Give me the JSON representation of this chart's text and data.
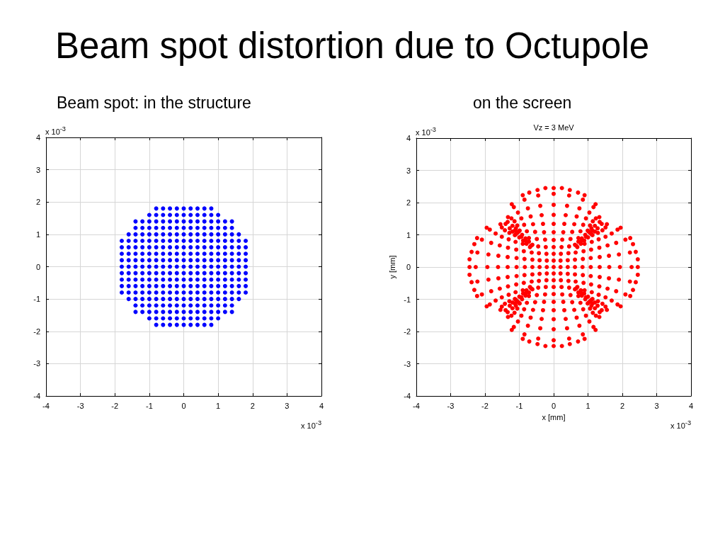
{
  "chart_data": [
    {
      "type": "scatter",
      "title": "Beam spot distortion due to Octupole",
      "subtitle": "Beam spot: in the structure",
      "annotations": [
        "x 10$^{-3}$",
        "x 10$^{-3}$"
      ],
      "xlim": [
        -4,
        4
      ],
      "ylim": [
        -4,
        4
      ],
      "xticks": [
        -4,
        -3,
        -2,
        -1,
        0,
        1,
        2,
        3,
        4
      ],
      "yticks": [
        -4,
        -3,
        -2,
        -1,
        0,
        1,
        2,
        3,
        4
      ],
      "grid": true,
      "marker": "circle",
      "series": [
        {
          "color": "#0000ff",
          "x": [
            -0.8,
            -0.6,
            -0.4,
            -0.2,
            0,
            0.2,
            0.4,
            0.6,
            0.8,
            -1,
            -0.8,
            -0.6,
            -0.4,
            -0.2,
            0,
            0.2,
            0.4,
            0.6,
            0.8,
            1,
            -1.4,
            -1.2,
            -1,
            -0.8,
            -0.6,
            -0.4,
            -0.2,
            0,
            0.2,
            0.4,
            0.6,
            0.8,
            1,
            1.2,
            1.4,
            -1.4,
            -1.2,
            -1,
            -0.8,
            -0.6,
            -0.4,
            -0.2,
            0,
            0.2,
            0.4,
            0.6,
            0.8,
            1,
            1.2,
            1.4,
            -1.6,
            -1.4,
            -1.2,
            -1,
            -0.8,
            -0.6,
            -0.4,
            -0.2,
            0,
            0.2,
            0.4,
            0.6,
            0.8,
            1,
            1.2,
            1.4,
            1.6,
            -1.8,
            -1.6,
            -1.4,
            -1.2,
            -1,
            -0.8,
            -0.6,
            -0.4,
            -0.2,
            0,
            0.2,
            0.4,
            0.6,
            0.8,
            1,
            1.2,
            1.4,
            1.6,
            1.8,
            -1.8,
            -1.6,
            -1.4,
            -1.2,
            -1,
            -0.8,
            -0.6,
            -0.4,
            -0.2,
            0,
            0.2,
            0.4,
            0.6,
            0.8,
            1,
            1.2,
            1.4,
            1.6,
            1.8,
            -1.8,
            -1.6,
            -1.4,
            -1.2,
            -1,
            -0.8,
            -0.6,
            -0.4,
            -0.2,
            0,
            0.2,
            0.4,
            0.6,
            0.8,
            1,
            1.2,
            1.4,
            1.6,
            1.8,
            -1.8,
            -1.6,
            -1.4,
            -1.2,
            -1,
            -0.8,
            -0.6,
            -0.4,
            -0.2,
            0,
            0.2,
            0.4,
            0.6,
            0.8,
            1,
            1.2,
            1.4,
            1.6,
            1.8,
            -1.8,
            -1.6,
            -1.4,
            -1.2,
            -1,
            -0.8,
            -0.6,
            -0.4,
            -0.2,
            0,
            0.2,
            0.4,
            0.6,
            0.8,
            1,
            1.2,
            1.4,
            1.6,
            1.8,
            -1.8,
            -1.6,
            -1.4,
            -1.2,
            -1,
            -0.8,
            -0.6,
            -0.4,
            -0.2,
            0,
            0.2,
            0.4,
            0.6,
            0.8,
            1,
            1.2,
            1.4,
            1.6,
            1.8,
            -1.8,
            -1.6,
            -1.4,
            -1.2,
            -1,
            -0.8,
            -0.6,
            -0.4,
            -0.2,
            0,
            0.2,
            0.4,
            0.6,
            0.8,
            1,
            1.2,
            1.4,
            1.6,
            1.8,
            -1.8,
            -1.6,
            -1.4,
            -1.2,
            -1,
            -0.8,
            -0.6,
            -0.4,
            -0.2,
            0,
            0.2,
            0.4,
            0.6,
            0.8,
            1,
            1.2,
            1.4,
            1.6,
            1.8,
            -1.8,
            -1.6,
            -1.4,
            -1.2,
            -1,
            -0.8,
            -0.6,
            -0.4,
            -0.2,
            0,
            0.2,
            0.4,
            0.6,
            0.8,
            1,
            1.2,
            1.4,
            1.6,
            1.8,
            -1.6,
            -1.4,
            -1.2,
            -1,
            -0.8,
            -0.6,
            -0.4,
            -0.2,
            0,
            0.2,
            0.4,
            0.6,
            0.8,
            1,
            1.2,
            1.4,
            1.6,
            -1.4,
            -1.2,
            -1,
            -0.8,
            -0.6,
            -0.4,
            -0.2,
            0,
            0.2,
            0.4,
            0.6,
            0.8,
            1,
            1.2,
            1.4,
            -1.4,
            -1.2,
            -1,
            -0.8,
            -0.6,
            -0.4,
            -0.2,
            0,
            0.2,
            0.4,
            0.6,
            0.8,
            1,
            1.2,
            1.4,
            -1,
            -0.8,
            -0.6,
            -0.4,
            -0.2,
            0,
            0.2,
            0.4,
            0.6,
            0.8,
            1,
            -0.8,
            -0.6,
            -0.4,
            -0.2,
            0,
            0.2,
            0.4,
            0.6,
            0.8
          ],
          "values": [
            1.8,
            1.8,
            1.8,
            1.8,
            1.8,
            1.8,
            1.8,
            1.8,
            1.8,
            1.6,
            1.6,
            1.6,
            1.6,
            1.6,
            1.6,
            1.6,
            1.6,
            1.6,
            1.6,
            1.6,
            1.4,
            1.4,
            1.4,
            1.4,
            1.4,
            1.4,
            1.4,
            1.4,
            1.4,
            1.4,
            1.4,
            1.4,
            1.4,
            1.4,
            1.4,
            1.2,
            1.2,
            1.2,
            1.2,
            1.2,
            1.2,
            1.2,
            1.2,
            1.2,
            1.2,
            1.2,
            1.2,
            1.2,
            1.2,
            1.2,
            1,
            1,
            1,
            1,
            1,
            1,
            1,
            1,
            1,
            1,
            1,
            1,
            1,
            1,
            1,
            1,
            1,
            0.8,
            0.8,
            0.8,
            0.8,
            0.8,
            0.8,
            0.8,
            0.8,
            0.8,
            0.8,
            0.8,
            0.8,
            0.8,
            0.8,
            0.8,
            0.8,
            0.8,
            0.8,
            0.8,
            0.6,
            0.6,
            0.6,
            0.6,
            0.6,
            0.6,
            0.6,
            0.6,
            0.6,
            0.6,
            0.6,
            0.6,
            0.6,
            0.6,
            0.6,
            0.6,
            0.6,
            0.6,
            0.6,
            0.4,
            0.4,
            0.4,
            0.4,
            0.4,
            0.4,
            0.4,
            0.4,
            0.4,
            0.4,
            0.4,
            0.4,
            0.4,
            0.4,
            0.4,
            0.4,
            0.4,
            0.4,
            0.4,
            0.2,
            0.2,
            0.2,
            0.2,
            0.2,
            0.2,
            0.2,
            0.2,
            0.2,
            0.2,
            0.2,
            0.2,
            0.2,
            0.2,
            0.2,
            0.2,
            0.2,
            0.2,
            0.2,
            0,
            0,
            0,
            0,
            0,
            0,
            0,
            0,
            0,
            0,
            0,
            0,
            0,
            0,
            0,
            0,
            0,
            0,
            0,
            -0.2,
            -0.2,
            -0.2,
            -0.2,
            -0.2,
            -0.2,
            -0.2,
            -0.2,
            -0.2,
            -0.2,
            -0.2,
            -0.2,
            -0.2,
            -0.2,
            -0.2,
            -0.2,
            -0.2,
            -0.2,
            -0.2,
            -0.4,
            -0.4,
            -0.4,
            -0.4,
            -0.4,
            -0.4,
            -0.4,
            -0.4,
            -0.4,
            -0.4,
            -0.4,
            -0.4,
            -0.4,
            -0.4,
            -0.4,
            -0.4,
            -0.4,
            -0.4,
            -0.4,
            -0.6,
            -0.6,
            -0.6,
            -0.6,
            -0.6,
            -0.6,
            -0.6,
            -0.6,
            -0.6,
            -0.6,
            -0.6,
            -0.6,
            -0.6,
            -0.6,
            -0.6,
            -0.6,
            -0.6,
            -0.6,
            -0.6,
            -0.8,
            -0.8,
            -0.8,
            -0.8,
            -0.8,
            -0.8,
            -0.8,
            -0.8,
            -0.8,
            -0.8,
            -0.8,
            -0.8,
            -0.8,
            -0.8,
            -0.8,
            -0.8,
            -0.8,
            -0.8,
            -0.8,
            -1,
            -1,
            -1,
            -1,
            -1,
            -1,
            -1,
            -1,
            -1,
            -1,
            -1,
            -1,
            -1,
            -1,
            -1,
            -1,
            -1,
            -1.2,
            -1.2,
            -1.2,
            -1.2,
            -1.2,
            -1.2,
            -1.2,
            -1.2,
            -1.2,
            -1.2,
            -1.2,
            -1.2,
            -1.2,
            -1.2,
            -1.2,
            -1.4,
            -1.4,
            -1.4,
            -1.4,
            -1.4,
            -1.4,
            -1.4,
            -1.4,
            -1.4,
            -1.4,
            -1.4,
            -1.4,
            -1.4,
            -1.4,
            -1.4,
            -1.6,
            -1.6,
            -1.6,
            -1.6,
            -1.6,
            -1.6,
            -1.6,
            -1.6,
            -1.6,
            -1.6,
            -1.6,
            -1.8,
            -1.8,
            -1.8,
            -1.8,
            -1.8,
            -1.8,
            -1.8,
            -1.8,
            -1.8
          ]
        }
      ]
    },
    {
      "type": "scatter",
      "title": "Vz = 3 MeV",
      "subtitle": "on the screen",
      "xlabel": "x [mm]",
      "ylabel": "y [mm]",
      "annotations": [
        "x 10$^{-3}$",
        "x 10$^{-3}$"
      ],
      "xlim": [
        -4,
        4
      ],
      "ylim": [
        -4,
        4
      ],
      "xticks": [
        -4,
        -3,
        -2,
        -1,
        0,
        1,
        2,
        3,
        4
      ],
      "yticks": [
        -4,
        -3,
        -2,
        -1,
        0,
        1,
        2,
        3,
        4
      ],
      "grid": true,
      "marker": "circle",
      "series": [
        {
          "color": "#ff0000",
          "x": [
            0,
            0,
            0,
            0,
            0,
            0,
            0,
            0,
            0,
            0,
            0,
            0,
            0,
            0,
            0,
            0,
            0,
            0,
            0,
            0,
            0,
            0.2,
            0.41,
            0.62,
            0.84,
            1.08,
            1.34,
            1.62,
            1.93,
            2.27,
            2.45,
            -0.2,
            -0.41,
            -0.62,
            -0.84,
            -1.08,
            -1.34,
            -1.62,
            -1.93,
            -2.27,
            -2.45,
            0.2,
            0.43,
            0.66,
            0.8,
            0.94,
            1.06,
            1.13,
            -0.2,
            -0.43,
            -0.66,
            -0.8,
            -0.94,
            -1.06,
            -1.13,
            0.2,
            0.43,
            0.66,
            0.8,
            0.94,
            1.06,
            1.13,
            -0.2,
            -0.43,
            -0.66,
            -0.8,
            -0.94,
            -1.06,
            -1.13,
            0.21,
            0.23,
            0.25,
            0.28,
            0.31,
            0.35,
            0.39,
            0.45,
            0.47,
            0.45,
            0.49,
            0.54,
            0.6,
            0.67,
            0.75,
            0.85,
            0.9,
            0.72,
            0.78,
            0.86,
            0.94,
            1.04,
            1.16,
            1.22,
            0.99,
            1.06,
            1.14,
            1.23,
            1.33,
            0.62,
            0.72,
            0.82,
            0.92,
            1.02,
            1.1,
            1.34,
            1.2,
            0.24,
            0.71,
            -0.21,
            -0.23,
            -0.25,
            -0.28,
            -0.31,
            -0.35,
            -0.39,
            -0.45,
            -0.47,
            -0.45,
            -0.49,
            -0.54,
            -0.6,
            -0.67,
            -0.75,
            -0.85,
            -0.9,
            -0.72,
            -0.78,
            -0.86,
            -0.94,
            -1.04,
            -1.16,
            -1.22,
            -0.99,
            -1.06,
            -1.14,
            -1.23,
            -1.33,
            -0.62,
            -0.72,
            -0.82,
            -0.92,
            -1.02,
            -1.1,
            -1.34,
            -1.2,
            -0.24,
            -0.71,
            0.21,
            0.23,
            0.25,
            0.28,
            0.31,
            0.35,
            0.39,
            0.45,
            0.47,
            0.45,
            0.49,
            0.54,
            0.6,
            0.67,
            0.75,
            0.85,
            0.9,
            0.72,
            0.78,
            0.86,
            0.94,
            1.04,
            1.16,
            1.22,
            0.99,
            1.06,
            1.14,
            1.23,
            1.33,
            0.62,
            0.72,
            0.82,
            0.92,
            1.02,
            1.1,
            1.34,
            1.2,
            0.24,
            0.71,
            -0.21,
            -0.23,
            -0.25,
            -0.28,
            -0.31,
            -0.35,
            -0.39,
            -0.45,
            -0.47,
            -0.45,
            -0.49,
            -0.54,
            -0.6,
            -0.67,
            -0.75,
            -0.85,
            -0.9,
            -0.72,
            -0.78,
            -0.86,
            -0.94,
            -1.04,
            -1.16,
            -1.22,
            -0.99,
            -1.06,
            -1.14,
            -1.23,
            -1.33,
            -0.62,
            -0.72,
            -0.82,
            -0.92,
            -1.02,
            -1.1,
            -1.34,
            -1.2,
            -0.24,
            -0.71,
            0.41,
            0.62,
            0.85,
            1.08,
            1.34,
            1.61,
            1.9,
            2.22,
            2.39,
            0.64,
            0.87,
            1.09,
            1.33,
            1.57,
            1.82,
            2.09,
            2.23,
            0.9,
            1.11,
            1.31,
            1.51,
            1.69,
            1.86,
            1.95,
            1.13,
            1.29,
            1.42,
            1.51,
            1.55,
            0.69,
            0.79,
            0.89,
            1,
            1.1,
            1.2,
            1.4,
            1.28,
            2.45,
            2.31,
            -0.41,
            -0.62,
            -0.85,
            -1.08,
            -1.34,
            -1.61,
            -1.9,
            -2.22,
            -2.39,
            -0.64,
            -0.87,
            -1.09,
            -1.33,
            -1.57,
            -1.82,
            -2.09,
            -2.23,
            -0.9,
            -1.11,
            -1.31,
            -1.51,
            -1.69,
            -1.86,
            -1.95,
            -1.13,
            -1.29,
            -1.42,
            -1.51,
            -1.55,
            -0.69,
            -0.79,
            -0.89,
            -1,
            -1.1,
            -1.2,
            -1.4,
            -1.28,
            -2.45,
            -2.31,
            0.41,
            0.62,
            0.85,
            1.08,
            1.34,
            1.61,
            1.9,
            2.22,
            2.39,
            0.64,
            0.87,
            1.09,
            1.33,
            1.57,
            1.82,
            2.09,
            2.23,
            0.9,
            1.11,
            1.31,
            1.51,
            1.69,
            1.86,
            1.95,
            1.13,
            1.29,
            1.42,
            1.51,
            1.55,
            0.69,
            0.79,
            0.89,
            1,
            1.1,
            1.2,
            1.4,
            1.28,
            2.45,
            2.31,
            -0.41,
            -0.62,
            -0.85,
            -1.08,
            -1.34,
            -1.61,
            -1.9,
            -2.22,
            -2.39,
            -0.64,
            -0.87,
            -1.09,
            -1.33,
            -1.57,
            -1.82,
            -2.09,
            -2.23,
            -0.9,
            -1.11,
            -1.31,
            -1.51,
            -1.69,
            -1.86,
            -1.95,
            -1.13,
            -1.29,
            -1.42,
            -1.51,
            -1.55,
            -0.69,
            -0.79,
            -0.89,
            -1,
            -1.1,
            -1.2,
            -1.4,
            -1.28,
            -2.45,
            -2.31
          ],
          "values": [
            0,
            0.2,
            0.41,
            0.62,
            0.84,
            1.08,
            1.34,
            1.62,
            1.93,
            2.27,
            2.45,
            -0.2,
            -0.41,
            -0.62,
            -0.84,
            -1.08,
            -1.34,
            -1.62,
            -1.93,
            -2.27,
            -2.45,
            0,
            0,
            0,
            0,
            0,
            0,
            0,
            0,
            0,
            0,
            0,
            0,
            0,
            0,
            0,
            0,
            0,
            0,
            0,
            0,
            0.2,
            0.43,
            0.66,
            0.8,
            0.94,
            1.06,
            1.13,
            0.2,
            0.43,
            0.66,
            0.8,
            0.94,
            1.06,
            1.13,
            -0.2,
            -0.43,
            -0.66,
            -0.8,
            -0.94,
            -1.06,
            -1.13,
            -0.2,
            -0.43,
            -0.66,
            -0.8,
            -0.94,
            -1.06,
            -1.13,
            0.41,
            0.62,
            0.85,
            1.08,
            1.34,
            1.61,
            1.9,
            2.22,
            2.39,
            0.64,
            0.87,
            1.09,
            1.33,
            1.57,
            1.82,
            2.09,
            2.23,
            0.9,
            1.11,
            1.31,
            1.51,
            1.69,
            1.86,
            1.95,
            1.13,
            1.29,
            1.42,
            1.51,
            1.55,
            0.69,
            0.79,
            0.89,
            1,
            1.1,
            1.2,
            1.4,
            1.28,
            2.45,
            2.31,
            0.41,
            0.62,
            0.85,
            1.08,
            1.34,
            1.61,
            1.9,
            2.22,
            2.39,
            0.64,
            0.87,
            1.09,
            1.33,
            1.57,
            1.82,
            2.09,
            2.23,
            0.9,
            1.11,
            1.31,
            1.51,
            1.69,
            1.86,
            1.95,
            1.13,
            1.29,
            1.42,
            1.51,
            1.55,
            0.69,
            0.79,
            0.89,
            1,
            1.1,
            1.2,
            1.4,
            1.28,
            2.45,
            2.31,
            -0.41,
            -0.62,
            -0.85,
            -1.08,
            -1.34,
            -1.61,
            -1.9,
            -2.22,
            -2.39,
            -0.64,
            -0.87,
            -1.09,
            -1.33,
            -1.57,
            -1.82,
            -2.09,
            -2.23,
            -0.9,
            -1.11,
            -1.31,
            -1.51,
            -1.69,
            -1.86,
            -1.95,
            -1.13,
            -1.29,
            -1.42,
            -1.51,
            -1.55,
            -0.69,
            -0.79,
            -0.89,
            -1,
            -1.1,
            -1.2,
            -1.4,
            -1.28,
            -2.45,
            -2.31,
            -0.41,
            -0.62,
            -0.85,
            -1.08,
            -1.34,
            -1.61,
            -1.9,
            -2.22,
            -2.39,
            -0.64,
            -0.87,
            -1.09,
            -1.33,
            -1.57,
            -1.82,
            -2.09,
            -2.23,
            -0.9,
            -1.11,
            -1.31,
            -1.51,
            -1.69,
            -1.86,
            -1.95,
            -1.13,
            -1.29,
            -1.42,
            -1.51,
            -1.55,
            -0.69,
            -0.79,
            -0.89,
            -1,
            -1.1,
            -1.2,
            -1.4,
            -1.28,
            -2.45,
            -2.31,
            0.21,
            0.23,
            0.25,
            0.28,
            0.31,
            0.35,
            0.39,
            0.45,
            0.47,
            0.45,
            0.49,
            0.54,
            0.6,
            0.67,
            0.75,
            0.85,
            0.9,
            0.72,
            0.78,
            0.86,
            0.94,
            1.04,
            1.16,
            1.22,
            0.99,
            1.06,
            1.14,
            1.23,
            1.33,
            0.62,
            0.72,
            0.82,
            0.92,
            1.02,
            1.1,
            1.34,
            1.2,
            0.24,
            0.71,
            0.21,
            0.23,
            0.25,
            0.28,
            0.31,
            0.35,
            0.39,
            0.45,
            0.47,
            0.45,
            0.49,
            0.54,
            0.6,
            0.67,
            0.75,
            0.85,
            0.9,
            0.72,
            0.78,
            0.86,
            0.94,
            1.04,
            1.16,
            1.22,
            0.99,
            1.06,
            1.14,
            1.23,
            1.33,
            0.62,
            0.72,
            0.82,
            0.92,
            1.02,
            1.1,
            1.34,
            1.2,
            0.24,
            0.71,
            -0.21,
            -0.23,
            -0.25,
            -0.28,
            -0.31,
            -0.35,
            -0.39,
            -0.45,
            -0.47,
            -0.45,
            -0.49,
            -0.54,
            -0.6,
            -0.67,
            -0.75,
            -0.85,
            -0.9,
            -0.72,
            -0.78,
            -0.86,
            -0.94,
            -1.04,
            -1.16,
            -1.22,
            -0.99,
            -1.06,
            -1.14,
            -1.23,
            -1.33,
            -0.62,
            -0.72,
            -0.82,
            -0.92,
            -1.02,
            -1.1,
            -1.34,
            -1.2,
            -0.24,
            -0.71,
            -0.21,
            -0.23,
            -0.25,
            -0.28,
            -0.31,
            -0.35,
            -0.39,
            -0.45,
            -0.47,
            -0.45,
            -0.49,
            -0.54,
            -0.6,
            -0.67,
            -0.75,
            -0.85,
            -0.9,
            -0.72,
            -0.78,
            -0.86,
            -0.94,
            -1.04,
            -1.16,
            -1.22,
            -0.99,
            -1.06,
            -1.14,
            -1.23,
            -1.33,
            -0.62,
            -0.72,
            -0.82,
            -0.92,
            -1.02,
            -1.1,
            -1.34,
            -1.2,
            -0.24,
            -0.71
          ]
        }
      ]
    }
  ]
}
